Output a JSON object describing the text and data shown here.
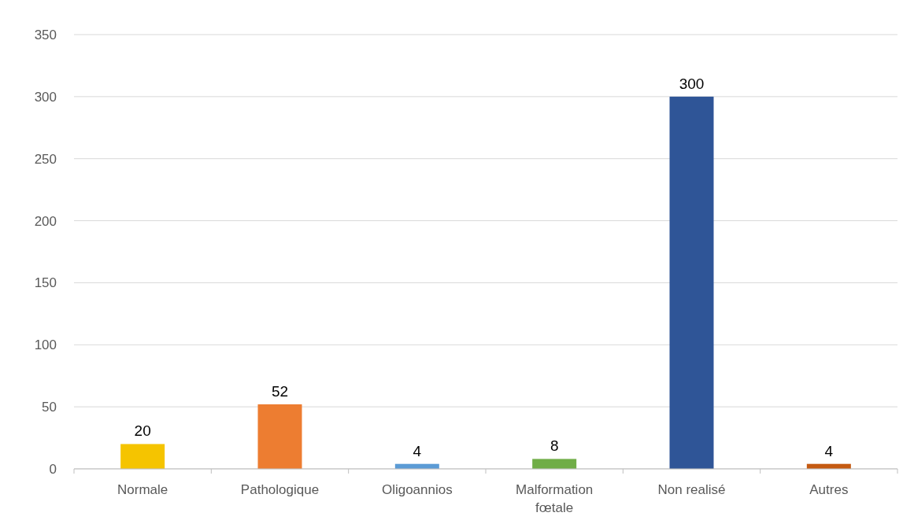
{
  "chart_data": {
    "type": "bar",
    "categories": [
      "Normale",
      "Pathologique",
      "Oligoannios",
      "Malformation fœtale",
      "Non realisé",
      "Autres"
    ],
    "values": [
      20,
      52,
      4,
      8,
      300,
      4
    ],
    "colors": [
      "#f5c400",
      "#ed7d31",
      "#5b9bd5",
      "#70ad47",
      "#2f5597",
      "#c55a11"
    ],
    "ylim": [
      0,
      350
    ],
    "yticks": [
      0,
      50,
      100,
      150,
      200,
      250,
      300,
      350
    ],
    "grid": "y",
    "data_labels": true
  }
}
